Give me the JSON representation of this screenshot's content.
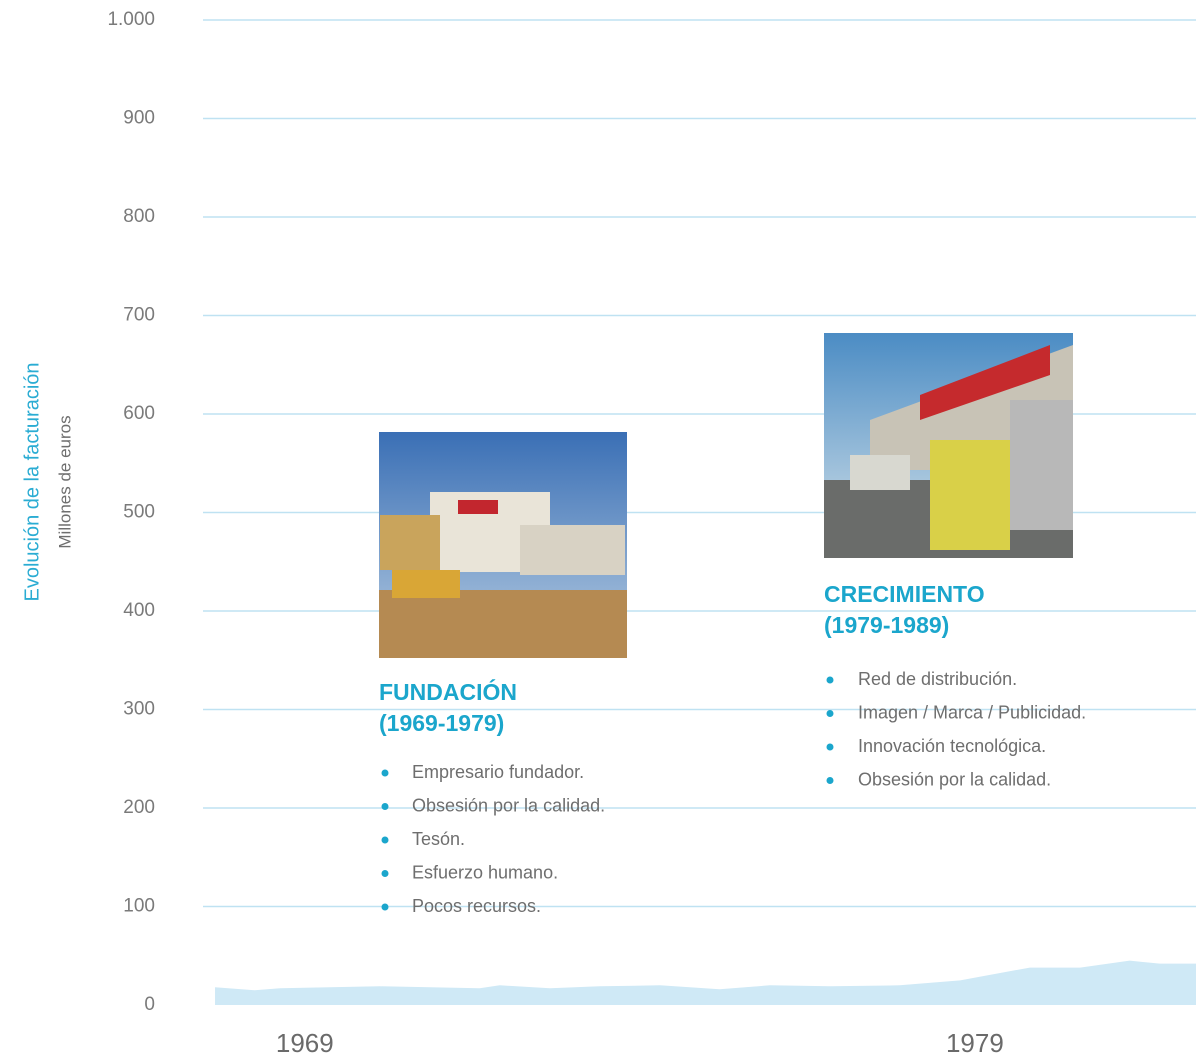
{
  "chart_data": {
    "type": "area",
    "y_label": "Evolución de la facturación",
    "y_sublabel": "Millones de euros",
    "x": [
      1967.66,
      1968.25,
      1968.63,
      1969.37,
      1970.12,
      1970.87,
      1971.61,
      1971.91,
      1972.66,
      1973.4,
      1974.3,
      1975.19,
      1975.94,
      1976.84,
      1977.88,
      1978.78,
      1979.82,
      1980.57,
      1981.31,
      1981.76,
      1982.3
    ],
    "series": [
      {
        "color": "#cfe9f6",
        "values": [
          18,
          15,
          17,
          18,
          19,
          18,
          17,
          20,
          17,
          19,
          20,
          16,
          20,
          19,
          20,
          25,
          38,
          38,
          45,
          42,
          42
        ]
      }
    ],
    "xlim": [
      1967.6,
      1982.3
    ],
    "xticks": [
      1969,
      1979
    ],
    "ylim": [
      0,
      1000
    ],
    "yticks": [
      0,
      100,
      200,
      300,
      400,
      500,
      600,
      700,
      800,
      900,
      {
        "value": 1000,
        "label": "1.000"
      }
    ],
    "grid": true,
    "annotations": [
      {
        "title": [
          "FUNDACIÓN",
          "(1969-1979)"
        ],
        "items": [
          "Empresario fundador.",
          "Obsesión por la calidad.",
          "Tesón.",
          "Esfuerzo humano.",
          "Pocos recursos."
        ]
      },
      {
        "title": [
          "CRECIMIENTO",
          "(1979-1989)"
        ],
        "items": [
          "Red de distribución.",
          "Imagen / Marca / Publicidad.",
          "Innovación tecnológica.",
          "Obsesión por la calidad."
        ]
      }
    ]
  }
}
